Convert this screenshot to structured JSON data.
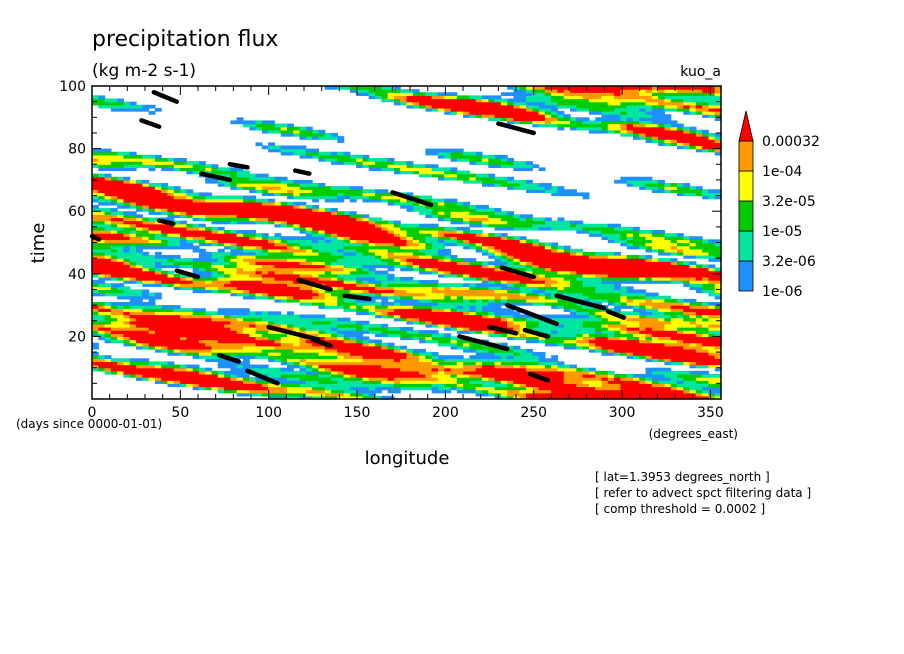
{
  "chart_data": {
    "type": "heatmap",
    "title": "precipitation flux",
    "units": "(kg m-2 s-1)",
    "run_label": "kuo_a",
    "xlabel": "longitude",
    "ylabel": "time",
    "x_units": "(degrees_east)",
    "y_units": "(days since 0000-01-01)",
    "xlim": [
      0,
      356
    ],
    "ylim": [
      0,
      100
    ],
    "x_ticks": [
      "0",
      "50",
      "100",
      "150",
      "200",
      "250",
      "300",
      "350"
    ],
    "x_tick_values": [
      0,
      50,
      100,
      150,
      200,
      250,
      300,
      350
    ],
    "y_ticks": [
      "20",
      "40",
      "60",
      "80",
      "100"
    ],
    "y_tick_values": [
      20,
      40,
      60,
      80,
      100
    ],
    "colorbar": {
      "scale": "log",
      "labels": [
        "1e-06",
        "3.2e-06",
        "1e-05",
        "3.2e-05",
        "1e-04",
        "0.00032"
      ],
      "colors": [
        "#1e90ff",
        "#00e5a0",
        "#00cc00",
        "#ffff00",
        "#ff9900",
        "#ff0000"
      ]
    },
    "overlay": {
      "name": "comp threshold",
      "threshold": 0.0002,
      "color": "#000000",
      "streaks": [
        {
          "lon": [
            35,
            48
          ],
          "time": [
            98,
            95
          ]
        },
        {
          "lon": [
            28,
            38
          ],
          "time": [
            89,
            87
          ]
        },
        {
          "lon": [
            62,
            78
          ],
          "time": [
            72,
            70
          ]
        },
        {
          "lon": [
            78,
            88
          ],
          "time": [
            75,
            74
          ]
        },
        {
          "lon": [
            115,
            123
          ],
          "time": [
            73,
            72
          ]
        },
        {
          "lon": [
            170,
            192
          ],
          "time": [
            66,
            62
          ]
        },
        {
          "lon": [
            230,
            250
          ],
          "time": [
            88,
            85
          ]
        },
        {
          "lon": [
            38,
            46
          ],
          "time": [
            57,
            56
          ]
        },
        {
          "lon": [
            0,
            4
          ],
          "time": [
            52,
            51
          ]
        },
        {
          "lon": [
            48,
            60
          ],
          "time": [
            41,
            39
          ]
        },
        {
          "lon": [
            117,
            135
          ],
          "time": [
            38,
            35
          ]
        },
        {
          "lon": [
            143,
            157
          ],
          "time": [
            33,
            32
          ]
        },
        {
          "lon": [
            100,
            128
          ],
          "time": [
            23,
            19
          ]
        },
        {
          "lon": [
            72,
            83
          ],
          "time": [
            14,
            12
          ]
        },
        {
          "lon": [
            88,
            105
          ],
          "time": [
            9,
            5
          ]
        },
        {
          "lon": [
            125,
            135
          ],
          "time": [
            19,
            17
          ]
        },
        {
          "lon": [
            208,
            235
          ],
          "time": [
            20,
            16
          ]
        },
        {
          "lon": [
            225,
            240
          ],
          "time": [
            23,
            21
          ]
        },
        {
          "lon": [
            232,
            250
          ],
          "time": [
            42,
            39
          ]
        },
        {
          "lon": [
            235,
            263
          ],
          "time": [
            30,
            24
          ]
        },
        {
          "lon": [
            245,
            258
          ],
          "time": [
            22,
            20
          ]
        },
        {
          "lon": [
            263,
            290
          ],
          "time": [
            33,
            29
          ]
        },
        {
          "lon": [
            292,
            301
          ],
          "time": [
            28,
            26
          ]
        },
        {
          "lon": [
            248,
            258
          ],
          "time": [
            8,
            6
          ]
        }
      ]
    },
    "notes": [
      "[ lat=1.3953 degrees_north ]",
      "[ refer to advect spct filtering data ]",
      "[ comp threshold = 0.0002 ]"
    ]
  }
}
